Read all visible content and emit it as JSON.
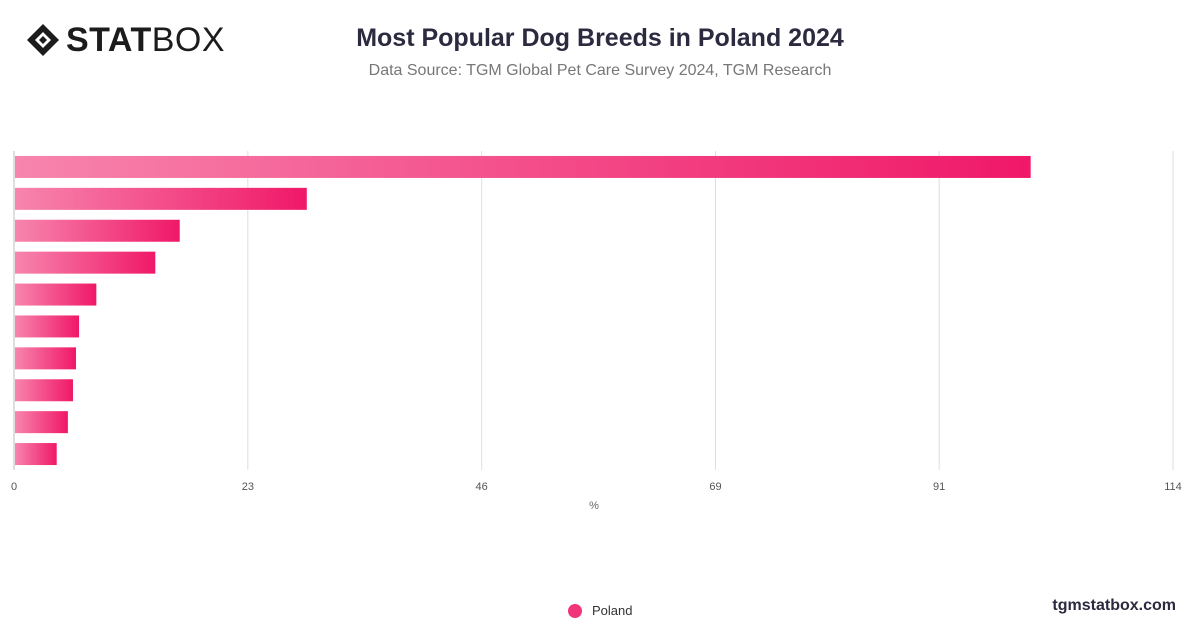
{
  "brand": {
    "stat": "STAT",
    "box": "BOX",
    "site": "tgmstatbox.com",
    "logo_icon": "diamond-logo-icon"
  },
  "chart_data": {
    "type": "bar",
    "orientation": "horizontal",
    "title": "Most Popular Dog Breeds in Poland 2024",
    "subtitle": "Data Source: TGM Global Pet Care Survey 2024, TGM Research",
    "xlabel": "%",
    "xlim": [
      0,
      114
    ],
    "ticks": [
      0,
      23,
      46,
      69,
      91,
      114
    ],
    "grid": true,
    "legend_position": "bottom",
    "categories": [
      "",
      "",
      "",
      "",
      "",
      "",
      "",
      "",
      "",
      ""
    ],
    "series": [
      {
        "name": "Poland",
        "color": "#f0357a",
        "values": [
          100,
          28.8,
          16.3,
          13.9,
          8.1,
          6.4,
          6.1,
          5.8,
          5.3,
          4.2
        ]
      }
    ]
  }
}
